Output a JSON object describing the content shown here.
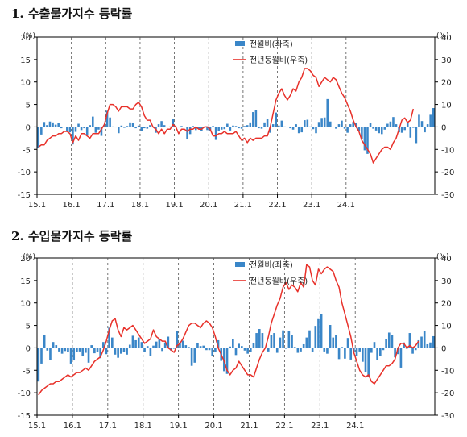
{
  "titles": {
    "chart1": "1. 수출물가지수 등락률",
    "chart2": "2. 수입물가지수 등락률"
  },
  "colors": {
    "bar": "#3a86c8",
    "line": "#e8312a",
    "axis": "#000000",
    "grid": "#555555"
  },
  "chart_data": [
    {
      "type": "bar",
      "title": "1. 수출물가지수 등락률",
      "x_tick_labels": [
        "15.1",
        "16.1",
        "17.1",
        "18.1",
        "19.1",
        "20.1",
        "21.1",
        "22.1",
        "23.1",
        "24.1"
      ],
      "left_axis": {
        "unit": "(%)",
        "ylim": [
          -15,
          20
        ],
        "ticks": [
          -15,
          -10,
          -5,
          0,
          5,
          10,
          15,
          20
        ]
      },
      "right_axis": {
        "unit": "(%)",
        "ylim": [
          -30,
          40
        ],
        "ticks": [
          -30,
          -20,
          -10,
          0,
          10,
          20,
          30,
          40
        ]
      },
      "grid": "vertical dashed at each year",
      "legend_position": "top-center",
      "series": [
        {
          "name": "전월비(좌축)",
          "type": "bar",
          "axis": "left",
          "values": [
            -4.6,
            -1.7,
            1.1,
            0.4,
            1.2,
            1.0,
            0.5,
            0.9,
            -0.3,
            -0.1,
            -0.9,
            -1.2,
            -3.9,
            -1.1,
            0.7,
            -0.7,
            -0.3,
            -1.8,
            0.4,
            2.3,
            -1.3,
            -0.6,
            -2.0,
            0.5,
            3.6,
            2.1,
            0.1,
            -0.1,
            -1.4,
            0.3,
            -0.2,
            0.2,
            1.0,
            0.9,
            -0.3,
            0.3,
            -0.9,
            -0.3,
            -0.4,
            0.4,
            0.1,
            -1.3,
            0.6,
            1.3,
            0.4,
            -0.1,
            0.1,
            1.7,
            0.1,
            -0.1,
            0.2,
            0.0,
            -2.8,
            -1.6,
            0.2,
            -0.7,
            -0.4,
            -0.9,
            0.0,
            -0.7,
            -1.0,
            0.2,
            -2.9,
            -1.0,
            -0.6,
            -0.5,
            0.7,
            -0.8,
            0.3,
            0.2,
            -0.3,
            -0.4,
            0.2,
            0.4,
            1.0,
            3.3,
            3.7,
            -0.3,
            -0.4,
            1.0,
            1.8,
            -1.3,
            0.6,
            3.2,
            0.3,
            1.4,
            0.1,
            0.0,
            -0.3,
            -0.6,
            0.6,
            -1.4,
            -1.2,
            1.5,
            1.6,
            0.1,
            -0.5,
            -1.4,
            1.1,
            2.0,
            2.1,
            6.2,
            1.2,
            0.0,
            -0.4,
            0.6,
            1.4,
            -0.4,
            -1.3,
            0.6,
            1.1,
            0.8,
            -1.0,
            -2.8,
            -5.2,
            -6.0,
            0.9,
            -0.4,
            -0.8,
            -1.4,
            -1.6,
            -0.6,
            0.7,
            1.2,
            2.2,
            0.6,
            -1.2,
            -1.3,
            -0.7,
            1.2,
            -2.4,
            -0.2,
            -3.6,
            2.7,
            1.3,
            -1.2,
            0.6,
            2.7,
            4.2
          ]
        },
        {
          "name": "전년동월비(우축)",
          "type": "line",
          "axis": "right",
          "values": [
            -9,
            -8,
            -8,
            -6,
            -5,
            -4,
            -4,
            -3,
            -3,
            -2,
            -2,
            -3,
            -7,
            -4,
            -6,
            -3,
            -3,
            -4,
            -5,
            -3,
            -3,
            -3,
            -1,
            1,
            6,
            10,
            10,
            9,
            7,
            9,
            9,
            9,
            8,
            8,
            10,
            11,
            9,
            5,
            3,
            3,
            0,
            -1,
            -3,
            -1,
            -3,
            -1,
            -1,
            1,
            0,
            -3,
            -1,
            -1,
            -2,
            -1,
            -1,
            0,
            -1,
            -1,
            0,
            0,
            -1,
            -4,
            -4,
            -3,
            -3,
            -2,
            -3,
            -3,
            -3,
            -2,
            -4,
            -6,
            -5,
            -7,
            -5,
            -6,
            -5,
            -5,
            -5,
            -4,
            -4,
            0,
            6,
            12,
            15,
            17,
            14,
            12,
            14,
            17,
            16,
            20,
            22,
            26,
            26,
            25,
            23,
            22,
            18,
            20,
            22,
            21,
            20,
            22,
            21,
            18,
            15,
            13,
            10,
            7,
            3,
            0,
            -2,
            -6,
            -8,
            -10,
            -12,
            -16,
            -14,
            -12,
            -10,
            -9,
            -9,
            -10,
            -7,
            -5,
            -1,
            3,
            4,
            2,
            3,
            8
          ]
        }
      ]
    },
    {
      "type": "bar",
      "title": "2. 수입물가지수 등락률",
      "x_tick_labels": [
        "15.1",
        "16.1",
        "17.1",
        "18.1",
        "19.1",
        "20.1",
        "21.1",
        "22.1",
        "23.1",
        "24.1"
      ],
      "left_axis": {
        "unit": "(%)",
        "ylim": [
          -15,
          20
        ],
        "ticks": [
          -15,
          -10,
          -5,
          0,
          5,
          10,
          15,
          20
        ]
      },
      "right_axis": {
        "unit": "(%)",
        "ylim": [
          -30,
          40
        ],
        "ticks": [
          -30,
          -20,
          -10,
          0,
          10,
          20,
          30,
          40
        ]
      },
      "grid": "vertical dashed at each year",
      "legend_position": "top-center",
      "series": [
        {
          "name": "전월비(좌축)",
          "type": "bar",
          "axis": "left",
          "values": [
            -7.5,
            -3.5,
            2.8,
            -0.6,
            -2.7,
            1.3,
            0.6,
            -0.8,
            -1.3,
            -0.7,
            -0.9,
            -3.5,
            -2.8,
            -1.0,
            -0.8,
            -1.9,
            -1.1,
            -3.3,
            0.6,
            -1.2,
            -0.9,
            -2.3,
            1.3,
            -1.4,
            4.5,
            2.3,
            -1.5,
            -2.2,
            -1.3,
            -0.9,
            -1.5,
            0.7,
            2.7,
            1.7,
            2.3,
            1.3,
            -1.0,
            0.4,
            -1.8,
            0.5,
            1.4,
            2.0,
            -0.7,
            1.2,
            2.5,
            -0.6,
            -0.2,
            3.7,
            1.2,
            1.6,
            0.6,
            0.2,
            -4.0,
            -3.3,
            1.1,
            0.4,
            0.5,
            -0.5,
            -0.5,
            -1.8,
            -1.0,
            1.7,
            -2.9,
            -5.2,
            -5.8,
            0.3,
            1.9,
            -1.6,
            0.9,
            0.4,
            -0.6,
            -1.3,
            -1.0,
            1.1,
            3.3,
            4.2,
            3.3,
            0.1,
            -0.8,
            2.9,
            3.3,
            -1.1,
            2.3,
            3.9,
            -0.2,
            3.7,
            2.8,
            0.2,
            -1.1,
            -0.8,
            0.8,
            2.3,
            3.9,
            -0.9,
            4.9,
            6.4,
            7.6,
            -0.8,
            -1.3,
            5.1,
            2.3,
            2.8,
            -2.5,
            0.2,
            -2.4,
            2.2,
            -2.6,
            -1.0,
            -1.9,
            -0.8,
            -3.1,
            -5.4,
            -6.4,
            -1.1,
            1.3,
            -2.7,
            -1.9,
            -0.5,
            1.9,
            3.4,
            2.8,
            -2.1,
            -1.4,
            -4.4,
            1.2,
            -0.2,
            3.3,
            -1.3,
            -0.5,
            1.7,
            2.5,
            3.8,
            0.8,
            1.2,
            2.6
          ]
        },
        {
          "name": "전년동월비(우축)",
          "type": "line",
          "axis": "right",
          "values": [
            -21,
            -19,
            -18,
            -17,
            -16,
            -16,
            -15,
            -15,
            -14,
            -13,
            -12,
            -13,
            -12,
            -11,
            -11,
            -10,
            -9,
            -10,
            -8,
            -6,
            -5,
            -4,
            -1,
            3,
            8,
            12,
            13,
            8,
            5,
            9,
            8,
            9,
            10,
            8,
            6,
            4,
            2,
            3,
            4,
            8,
            5,
            4,
            3,
            3,
            0,
            -1,
            -2,
            1,
            2,
            4,
            7,
            10,
            11,
            11,
            10,
            9,
            11,
            12,
            11,
            9,
            5,
            0,
            -3,
            -6,
            -10,
            -12,
            -10,
            -9,
            -6,
            -8,
            -10,
            -12,
            -12,
            -13,
            -9,
            -5,
            -2,
            0,
            5,
            11,
            15,
            19,
            22,
            27,
            29,
            26,
            28,
            27,
            25,
            29,
            27,
            37,
            36,
            30,
            28,
            35,
            33,
            35,
            36,
            35,
            34,
            30,
            27,
            20,
            15,
            10,
            5,
            -2,
            -6,
            -10,
            -12,
            -13,
            -12,
            -15,
            -16,
            -14,
            -12,
            -10,
            -8,
            -8,
            -7,
            -5,
            0,
            2,
            2,
            0,
            1,
            0,
            1,
            3
          ]
        }
      ]
    }
  ]
}
